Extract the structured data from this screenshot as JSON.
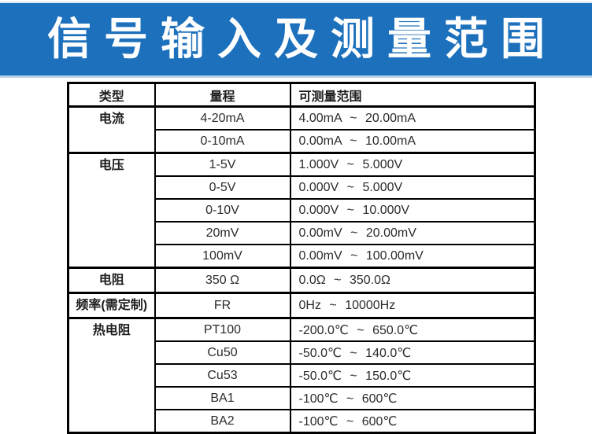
{
  "banner": {
    "title": "信号输入及测量范围",
    "bg_color": "#1c70bc",
    "text_color": "#ffffff",
    "edge_color": "#b8d2ea"
  },
  "table": {
    "border_color": "#000000",
    "text_color": "#2b2b2b",
    "headers": [
      "类型",
      "量程",
      "可测量范围"
    ],
    "groups": [
      {
        "type": "电流",
        "rows": [
          {
            "range": "4-20mA",
            "span": "4.00mA ~ 20.00mA"
          },
          {
            "range": "0-10mA",
            "span": "0.00mA ~ 10.00mA"
          }
        ]
      },
      {
        "type": "电压",
        "rows": [
          {
            "range": "1-5V",
            "span": "1.000V ~ 5.000V"
          },
          {
            "range": "0-5V",
            "span": "0.000V ~ 5.000V"
          },
          {
            "range": "0-10V",
            "span": "0.000V ~ 10.000V"
          },
          {
            "range": "20mV",
            "span": "0.00mV ~ 20.00mV"
          },
          {
            "range": "100mV",
            "span": "0.00mV ~ 100.00mV"
          }
        ]
      },
      {
        "type": "电阻",
        "rows": [
          {
            "range": "350 Ω",
            "span": "0.0Ω ~ 350.0Ω"
          }
        ]
      },
      {
        "type": "频率(需定制)",
        "rows": [
          {
            "range": "FR",
            "span": "0Hz ~ 10000Hz"
          }
        ]
      },
      {
        "type": "热电阻",
        "rows": [
          {
            "range": "PT100",
            "span": "-200.0℃ ~ 650.0℃"
          },
          {
            "range": "Cu50",
            "span": "-50.0℃ ~ 140.0℃"
          },
          {
            "range": "Cu53",
            "span": "-50.0℃ ~ 150.0℃"
          },
          {
            "range": "BA1",
            "span": "-100℃ ~ 600℃"
          },
          {
            "range": "BA2",
            "span": "-100℃ ~ 600℃"
          }
        ]
      }
    ]
  }
}
